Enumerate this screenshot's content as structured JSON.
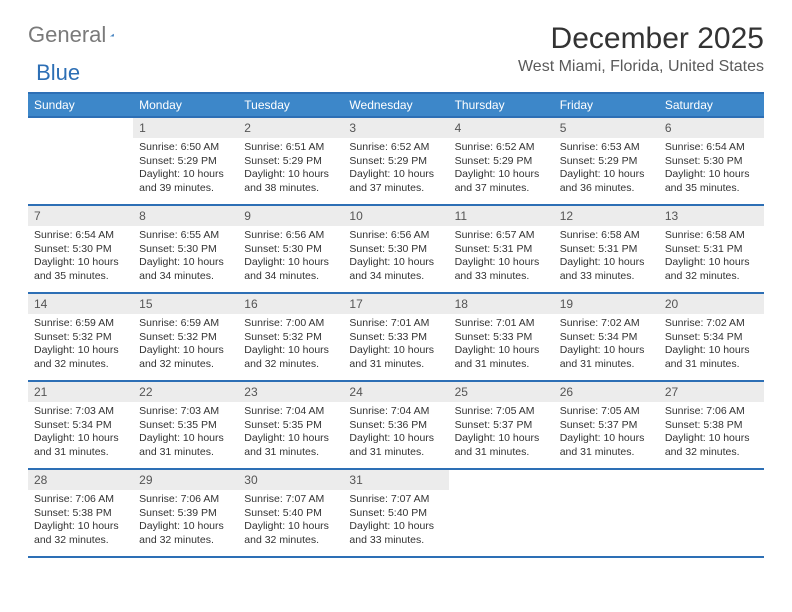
{
  "logo": {
    "text_grey": "General",
    "text_blue": "Blue",
    "tri_color": "#2d6fb5"
  },
  "title": "December 2025",
  "location": "West Miami, Florida, United States",
  "colors": {
    "header_bg": "#3d87c9",
    "header_border": "#2d6fb5",
    "daynum_bg": "#ececec",
    "text": "#333333"
  },
  "day_names": [
    "Sunday",
    "Monday",
    "Tuesday",
    "Wednesday",
    "Thursday",
    "Friday",
    "Saturday"
  ],
  "weeks": [
    [
      {
        "num": "",
        "lines": []
      },
      {
        "num": "1",
        "lines": [
          "Sunrise: 6:50 AM",
          "Sunset: 5:29 PM",
          "Daylight: 10 hours",
          "and 39 minutes."
        ]
      },
      {
        "num": "2",
        "lines": [
          "Sunrise: 6:51 AM",
          "Sunset: 5:29 PM",
          "Daylight: 10 hours",
          "and 38 minutes."
        ]
      },
      {
        "num": "3",
        "lines": [
          "Sunrise: 6:52 AM",
          "Sunset: 5:29 PM",
          "Daylight: 10 hours",
          "and 37 minutes."
        ]
      },
      {
        "num": "4",
        "lines": [
          "Sunrise: 6:52 AM",
          "Sunset: 5:29 PM",
          "Daylight: 10 hours",
          "and 37 minutes."
        ]
      },
      {
        "num": "5",
        "lines": [
          "Sunrise: 6:53 AM",
          "Sunset: 5:29 PM",
          "Daylight: 10 hours",
          "and 36 minutes."
        ]
      },
      {
        "num": "6",
        "lines": [
          "Sunrise: 6:54 AM",
          "Sunset: 5:30 PM",
          "Daylight: 10 hours",
          "and 35 minutes."
        ]
      }
    ],
    [
      {
        "num": "7",
        "lines": [
          "Sunrise: 6:54 AM",
          "Sunset: 5:30 PM",
          "Daylight: 10 hours",
          "and 35 minutes."
        ]
      },
      {
        "num": "8",
        "lines": [
          "Sunrise: 6:55 AM",
          "Sunset: 5:30 PM",
          "Daylight: 10 hours",
          "and 34 minutes."
        ]
      },
      {
        "num": "9",
        "lines": [
          "Sunrise: 6:56 AM",
          "Sunset: 5:30 PM",
          "Daylight: 10 hours",
          "and 34 minutes."
        ]
      },
      {
        "num": "10",
        "lines": [
          "Sunrise: 6:56 AM",
          "Sunset: 5:30 PM",
          "Daylight: 10 hours",
          "and 34 minutes."
        ]
      },
      {
        "num": "11",
        "lines": [
          "Sunrise: 6:57 AM",
          "Sunset: 5:31 PM",
          "Daylight: 10 hours",
          "and 33 minutes."
        ]
      },
      {
        "num": "12",
        "lines": [
          "Sunrise: 6:58 AM",
          "Sunset: 5:31 PM",
          "Daylight: 10 hours",
          "and 33 minutes."
        ]
      },
      {
        "num": "13",
        "lines": [
          "Sunrise: 6:58 AM",
          "Sunset: 5:31 PM",
          "Daylight: 10 hours",
          "and 32 minutes."
        ]
      }
    ],
    [
      {
        "num": "14",
        "lines": [
          "Sunrise: 6:59 AM",
          "Sunset: 5:32 PM",
          "Daylight: 10 hours",
          "and 32 minutes."
        ]
      },
      {
        "num": "15",
        "lines": [
          "Sunrise: 6:59 AM",
          "Sunset: 5:32 PM",
          "Daylight: 10 hours",
          "and 32 minutes."
        ]
      },
      {
        "num": "16",
        "lines": [
          "Sunrise: 7:00 AM",
          "Sunset: 5:32 PM",
          "Daylight: 10 hours",
          "and 32 minutes."
        ]
      },
      {
        "num": "17",
        "lines": [
          "Sunrise: 7:01 AM",
          "Sunset: 5:33 PM",
          "Daylight: 10 hours",
          "and 31 minutes."
        ]
      },
      {
        "num": "18",
        "lines": [
          "Sunrise: 7:01 AM",
          "Sunset: 5:33 PM",
          "Daylight: 10 hours",
          "and 31 minutes."
        ]
      },
      {
        "num": "19",
        "lines": [
          "Sunrise: 7:02 AM",
          "Sunset: 5:34 PM",
          "Daylight: 10 hours",
          "and 31 minutes."
        ]
      },
      {
        "num": "20",
        "lines": [
          "Sunrise: 7:02 AM",
          "Sunset: 5:34 PM",
          "Daylight: 10 hours",
          "and 31 minutes."
        ]
      }
    ],
    [
      {
        "num": "21",
        "lines": [
          "Sunrise: 7:03 AM",
          "Sunset: 5:34 PM",
          "Daylight: 10 hours",
          "and 31 minutes."
        ]
      },
      {
        "num": "22",
        "lines": [
          "Sunrise: 7:03 AM",
          "Sunset: 5:35 PM",
          "Daylight: 10 hours",
          "and 31 minutes."
        ]
      },
      {
        "num": "23",
        "lines": [
          "Sunrise: 7:04 AM",
          "Sunset: 5:35 PM",
          "Daylight: 10 hours",
          "and 31 minutes."
        ]
      },
      {
        "num": "24",
        "lines": [
          "Sunrise: 7:04 AM",
          "Sunset: 5:36 PM",
          "Daylight: 10 hours",
          "and 31 minutes."
        ]
      },
      {
        "num": "25",
        "lines": [
          "Sunrise: 7:05 AM",
          "Sunset: 5:37 PM",
          "Daylight: 10 hours",
          "and 31 minutes."
        ]
      },
      {
        "num": "26",
        "lines": [
          "Sunrise: 7:05 AM",
          "Sunset: 5:37 PM",
          "Daylight: 10 hours",
          "and 31 minutes."
        ]
      },
      {
        "num": "27",
        "lines": [
          "Sunrise: 7:06 AM",
          "Sunset: 5:38 PM",
          "Daylight: 10 hours",
          "and 32 minutes."
        ]
      }
    ],
    [
      {
        "num": "28",
        "lines": [
          "Sunrise: 7:06 AM",
          "Sunset: 5:38 PM",
          "Daylight: 10 hours",
          "and 32 minutes."
        ]
      },
      {
        "num": "29",
        "lines": [
          "Sunrise: 7:06 AM",
          "Sunset: 5:39 PM",
          "Daylight: 10 hours",
          "and 32 minutes."
        ]
      },
      {
        "num": "30",
        "lines": [
          "Sunrise: 7:07 AM",
          "Sunset: 5:40 PM",
          "Daylight: 10 hours",
          "and 32 minutes."
        ]
      },
      {
        "num": "31",
        "lines": [
          "Sunrise: 7:07 AM",
          "Sunset: 5:40 PM",
          "Daylight: 10 hours",
          "and 33 minutes."
        ]
      },
      {
        "num": "",
        "lines": []
      },
      {
        "num": "",
        "lines": []
      },
      {
        "num": "",
        "lines": []
      }
    ]
  ]
}
